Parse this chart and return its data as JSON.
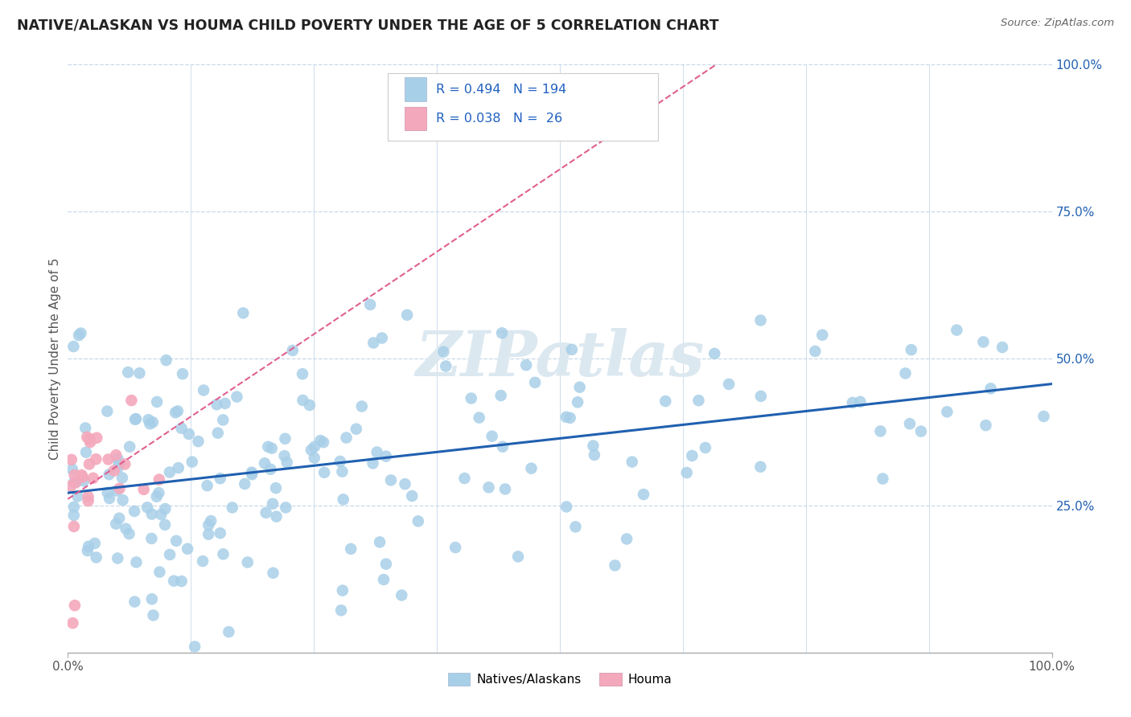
{
  "title": "NATIVE/ALASKAN VS HOUMA CHILD POVERTY UNDER THE AGE OF 5 CORRELATION CHART",
  "source_text": "Source: ZipAtlas.com",
  "ylabel": "Child Poverty Under the Age of 5",
  "xlim": [
    0,
    1
  ],
  "ylim": [
    0,
    1
  ],
  "xtick_labels": [
    "0.0%",
    "100.0%"
  ],
  "ytick_labels": [
    "25.0%",
    "50.0%",
    "75.0%",
    "100.0%"
  ],
  "ytick_values": [
    0.25,
    0.5,
    0.75,
    1.0
  ],
  "legend_label1": "Natives/Alaskans",
  "legend_label2": "Houma",
  "blue_color": "#a8cfe8",
  "pink_color": "#f4a8bc",
  "blue_line_color": "#2060b0",
  "pink_line_color": "#e06090",
  "title_color": "#222222",
  "stat_color": "#2060c0",
  "watermark_color": "#dce8f0",
  "grid_color": "#c8d8e8",
  "background_color": "#ffffff"
}
